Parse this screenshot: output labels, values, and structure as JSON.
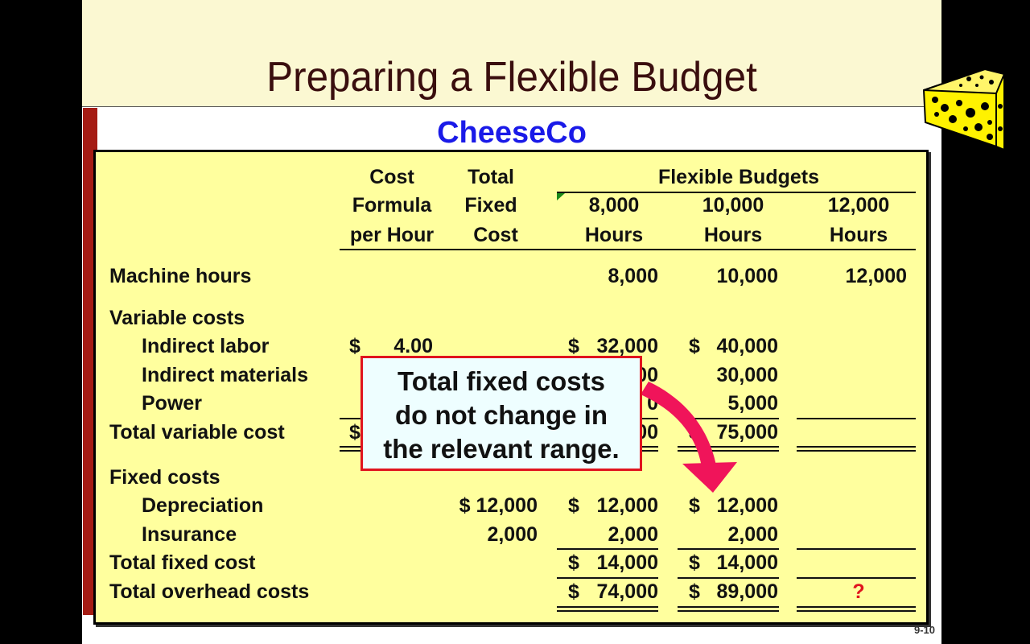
{
  "slide": {
    "title": "Preparing a Flexible Budget",
    "company": "CheeseCo",
    "page_number": "9-10"
  },
  "headers": {
    "col1": [
      "Cost",
      "Formula",
      "per Hour"
    ],
    "col2": [
      "Total",
      "Fixed",
      "Cost"
    ],
    "group": "Flexible Budgets",
    "col3": [
      "8,000",
      "Hours"
    ],
    "col4": [
      "10,000",
      "Hours"
    ],
    "col5": [
      "12,000",
      "Hours"
    ]
  },
  "rows": {
    "machine": {
      "label": "Machine hours",
      "c3": "8,000",
      "c4": "10,000",
      "c5": "12,000"
    },
    "variable": {
      "label": "Variable costs"
    },
    "labor": {
      "label": "Indirect labor",
      "c1": "4.00",
      "c3": "32,000",
      "c4": "40,000"
    },
    "materials": {
      "label": "Indirect materials",
      "c3": "00",
      "c4": "30,000"
    },
    "power": {
      "label": "Power",
      "c3": "0",
      "c4": "5,000"
    },
    "tvc": {
      "label": "Total variable cost",
      "c3": "00",
      "c4": "75,000"
    },
    "fixed": {
      "label": "Fixed costs"
    },
    "depreciation": {
      "label": "Depreciation",
      "c2": "$ 12,000",
      "c3": "12,000",
      "c4": "12,000"
    },
    "insurance": {
      "label": "Insurance",
      "c2": "2,000",
      "c3": "2,000",
      "c4": "2,000"
    },
    "tfc": {
      "label": "Total fixed cost",
      "c3": "14,000",
      "c4": "14,000"
    },
    "toc": {
      "label": "Total overhead costs",
      "c3": "74,000",
      "c4": "89,000",
      "c5": "?"
    }
  },
  "currency": "$",
  "callout": {
    "lines": [
      "Total fixed costs",
      "do not change in",
      "the relevant range."
    ]
  },
  "colors": {
    "title": "#3a0e0e",
    "company": "#1a1ae8",
    "box": "#ffff9e",
    "callout_border": "#e0141e",
    "arrow": "#f0145a"
  }
}
